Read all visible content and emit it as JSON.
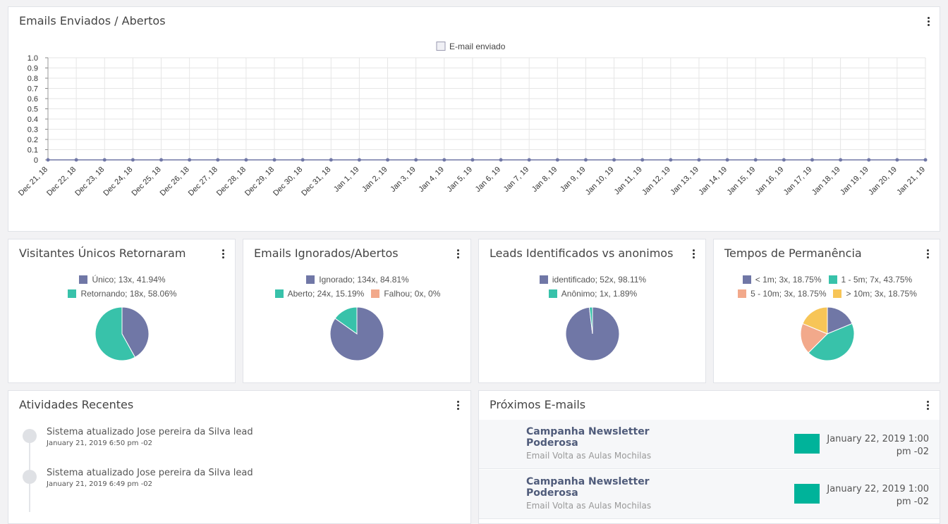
{
  "line_card": {
    "title": "Emails Enviados / Abertos",
    "legend_label": "E-mail enviado"
  },
  "pie_cards": [
    {
      "title": "Visitantes Únicos Retornaram",
      "legend_rows": [
        [
          0
        ],
        [
          1
        ]
      ]
    },
    {
      "title": "Emails Ignorados/Abertos",
      "legend_rows": [
        [
          0
        ],
        [
          1,
          2
        ]
      ]
    },
    {
      "title": "Leads Identificados vs anonimos",
      "legend_rows": [
        [
          0
        ],
        [
          1
        ]
      ]
    },
    {
      "title": "Tempos de Permanência",
      "legend_rows": [
        [
          0,
          1
        ],
        [
          2,
          3
        ]
      ]
    }
  ],
  "chart_data": [
    {
      "type": "line",
      "x": [
        "Dec 21, 18",
        "Dec 22, 18",
        "Dec 23, 18",
        "Dec 24, 18",
        "Dec 25, 18",
        "Dec 26, 18",
        "Dec 27, 18",
        "Dec 28, 18",
        "Dec 29, 18",
        "Dec 30, 18",
        "Dec 31, 18",
        "Jan 1, 19",
        "Jan 2, 19",
        "Jan 3, 19",
        "Jan 4, 19",
        "Jan 5, 19",
        "Jan 6, 19",
        "Jan 7, 19",
        "Jan 8, 19",
        "Jan 9, 19",
        "Jan 10, 19",
        "Jan 11, 19",
        "Jan 12, 19",
        "Jan 13, 19",
        "Jan 14, 19",
        "Jan 15, 19",
        "Jan 16, 19",
        "Jan 17, 19",
        "Jan 18, 19",
        "Jan 19, 19",
        "Jan 20, 19",
        "Jan 21, 19"
      ],
      "series": [
        {
          "name": "E-mail enviado",
          "color": "#7077a6",
          "values": [
            0,
            0,
            0,
            0,
            0,
            0,
            0,
            0,
            0,
            0,
            0,
            0,
            0,
            0,
            0,
            0,
            0,
            0,
            0,
            0,
            0,
            0,
            0,
            0,
            0,
            0,
            0,
            0,
            0,
            0,
            0,
            0
          ]
        }
      ],
      "ylim": [
        0,
        1.0
      ],
      "yticks": [
        "0",
        "0.1",
        "0.2",
        "0.3",
        "0.4",
        "0.5",
        "0.6",
        "0.7",
        "0.8",
        "0.9",
        "1.0"
      ],
      "grid": true,
      "legend": "top-center"
    },
    {
      "type": "pie",
      "labels": [
        "Único; 13x, 41.94%",
        "Retornando; 18x, 58.06%"
      ],
      "values": [
        13,
        18
      ],
      "colors": [
        "#7077a6",
        "#38c2aa"
      ],
      "legend": "top"
    },
    {
      "type": "pie",
      "labels": [
        "Ignorado; 134x, 84.81%",
        "Aberto; 24x, 15.19%",
        "Falhou; 0x, 0%"
      ],
      "values": [
        134,
        24,
        0
      ],
      "colors": [
        "#7077a6",
        "#38c2aa",
        "#f2a98b"
      ],
      "legend": "top"
    },
    {
      "type": "pie",
      "labels": [
        "identificado; 52x, 98.11%",
        "Anônimo; 1x, 1.89%"
      ],
      "values": [
        52,
        1
      ],
      "colors": [
        "#7077a6",
        "#38c2aa"
      ],
      "legend": "top"
    },
    {
      "type": "pie",
      "labels": [
        "< 1m; 3x, 18.75%",
        "1 - 5m; 7x, 43.75%",
        "5 - 10m; 3x, 18.75%",
        "> 10m; 3x, 18.75%"
      ],
      "values": [
        3,
        7,
        3,
        3
      ],
      "colors": [
        "#7077a6",
        "#38c2aa",
        "#f2a98b",
        "#f7c557"
      ],
      "legend": "top"
    }
  ],
  "activities": {
    "title": "Atividades Recentes",
    "items": [
      {
        "text": "Sistema atualizado Jose pereira da Silva lead",
        "time": "January 21, 2019 6:50 pm -02"
      },
      {
        "text": "Sistema atualizado Jose pereira da Silva lead",
        "time": "January 21, 2019 6:49 pm -02"
      }
    ]
  },
  "next_emails": {
    "title": "Próximos E-mails",
    "items": [
      {
        "title": "Campanha Newsletter Poderosa",
        "subtitle": "Email Volta as Aulas Mochilas",
        "date": "January 22, 2019 1:00 pm -02",
        "color": "#00b39a"
      },
      {
        "title": "Campanha Newsletter Poderosa",
        "subtitle": "Email Volta as Aulas Mochilas",
        "date": "January 22, 2019 1:00 pm -02",
        "color": "#00b39a"
      }
    ]
  }
}
